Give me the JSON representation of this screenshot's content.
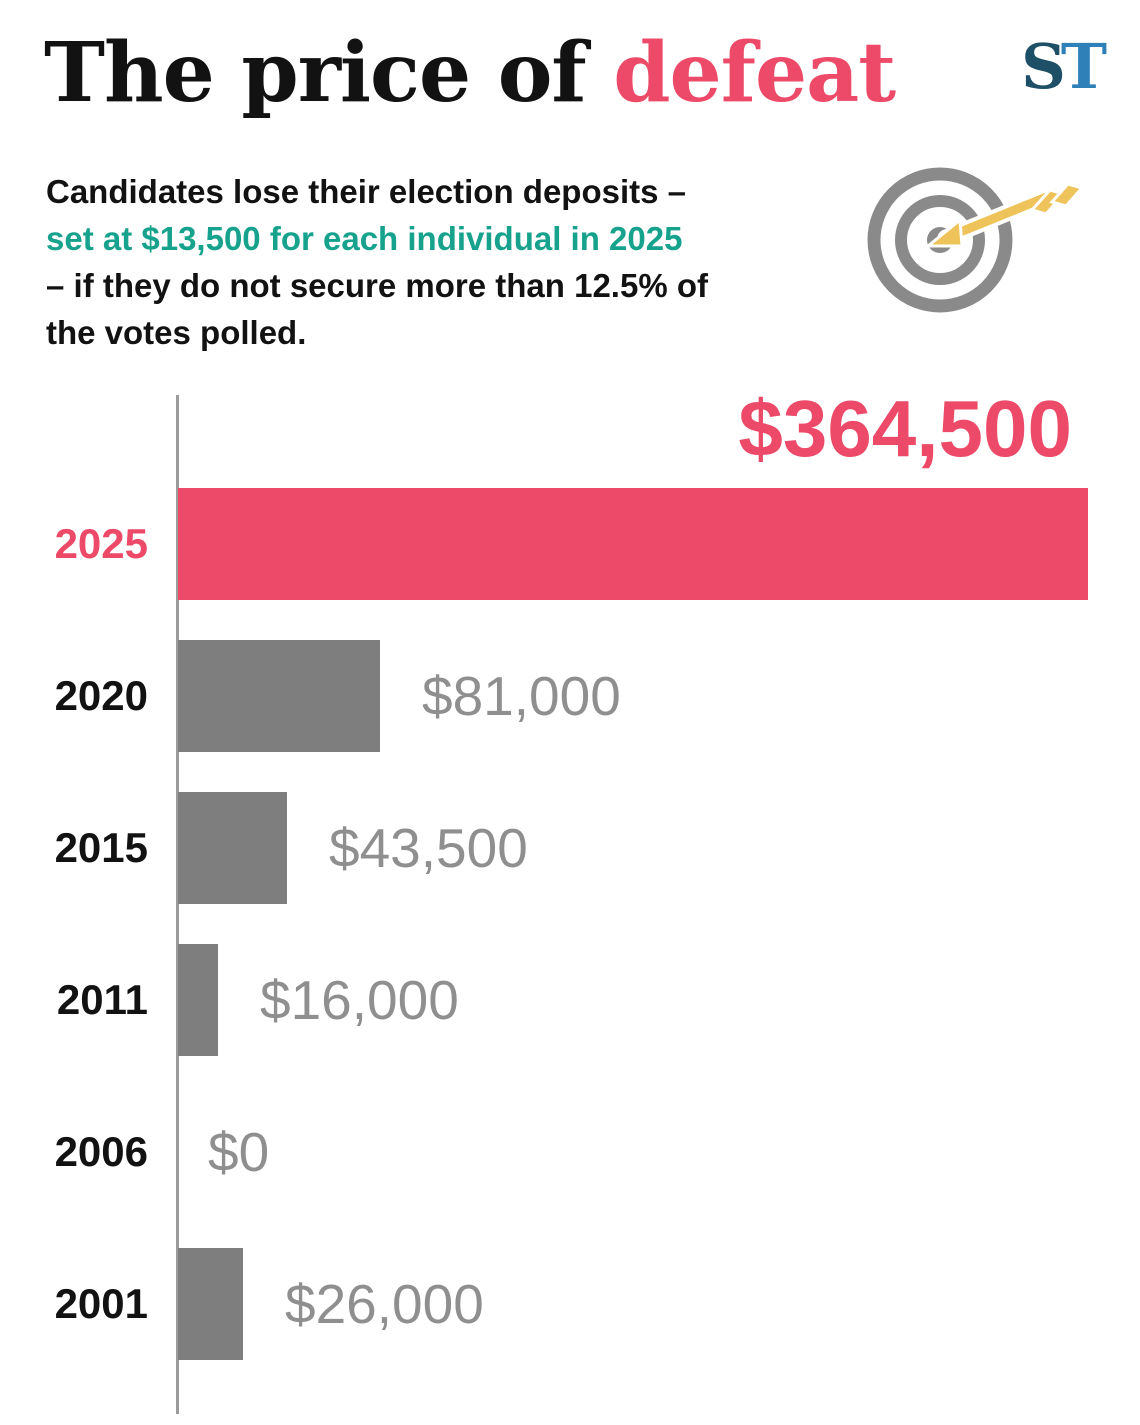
{
  "header": {
    "title_black": "The price of ",
    "title_accent": "defeat",
    "logo_s": "S",
    "logo_t": "T",
    "intro_line1": "Candidates lose their election deposits –",
    "intro_highlight": "set at $13,500 for each individual in 2025",
    "intro_line3": "– if they do not secure more than 12.5% of",
    "intro_line4": "the votes polled."
  },
  "colors": {
    "accent_pink": "#ec4a68",
    "teal": "#16a28c",
    "bar_gray": "#7e7e7e",
    "label_gray": "#8f8f8f",
    "text_black": "#121212"
  },
  "chart_data": {
    "type": "bar",
    "orientation": "horizontal",
    "title": "The price of defeat",
    "categories": [
      "2025",
      "2020",
      "2015",
      "2011",
      "2006",
      "2001"
    ],
    "values": [
      364500,
      81000,
      43500,
      16000,
      0,
      26000
    ],
    "value_labels": [
      "$364,500",
      "$81,000",
      "$43,500",
      "$16,000",
      "$0",
      "$26,000"
    ],
    "xlim": [
      0,
      364500
    ],
    "highlight_category": "2025",
    "grid": false,
    "legend": "none"
  }
}
